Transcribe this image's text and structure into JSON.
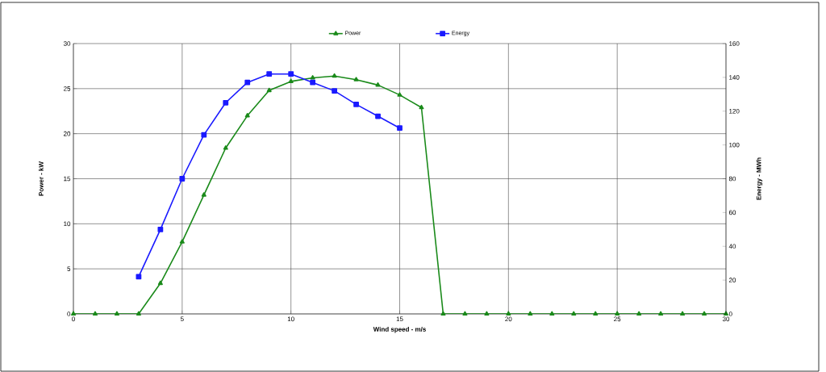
{
  "chart_data": {
    "type": "line",
    "x": [
      0,
      1,
      2,
      3,
      4,
      5,
      6,
      7,
      8,
      9,
      10,
      11,
      12,
      13,
      14,
      15,
      16,
      17,
      18,
      19,
      20,
      21,
      22,
      23,
      24,
      25,
      26,
      27,
      28,
      29,
      30
    ],
    "series": [
      {
        "name": "Power",
        "color": "#1a8a1a",
        "marker": "triangle",
        "values": [
          0,
          0,
          0,
          0,
          3.4,
          8.0,
          13.2,
          18.4,
          22.0,
          24.8,
          25.8,
          26.2,
          26.4,
          26.0,
          25.4,
          24.3,
          22.9,
          0,
          0,
          0,
          0,
          0,
          0,
          0,
          0,
          0,
          0,
          0,
          0,
          0,
          0
        ]
      },
      {
        "name": "Energy",
        "color": "#1a1aff",
        "marker": "square",
        "axis": "y2",
        "x": [
          3,
          4,
          5,
          6,
          7,
          8,
          9,
          10,
          11,
          12,
          13,
          14,
          15
        ],
        "values": [
          22,
          50,
          80,
          106,
          125,
          137,
          142,
          142,
          137,
          132,
          124,
          117,
          110
        ]
      }
    ],
    "xlabel": "Wind speed - m/s",
    "ylabel": "Power - kW",
    "y2label": "Energy - MWh",
    "xlim": [
      0,
      30
    ],
    "xticks": [
      0,
      5,
      10,
      15,
      20,
      25,
      30
    ],
    "ylim": [
      0,
      30
    ],
    "yticks": [
      0,
      5,
      10,
      15,
      20,
      25,
      30
    ],
    "y2lim": [
      0,
      160
    ],
    "y2ticks": [
      0,
      20,
      40,
      60,
      80,
      100,
      120,
      140,
      160
    ],
    "grid": true,
    "legend": "top"
  }
}
